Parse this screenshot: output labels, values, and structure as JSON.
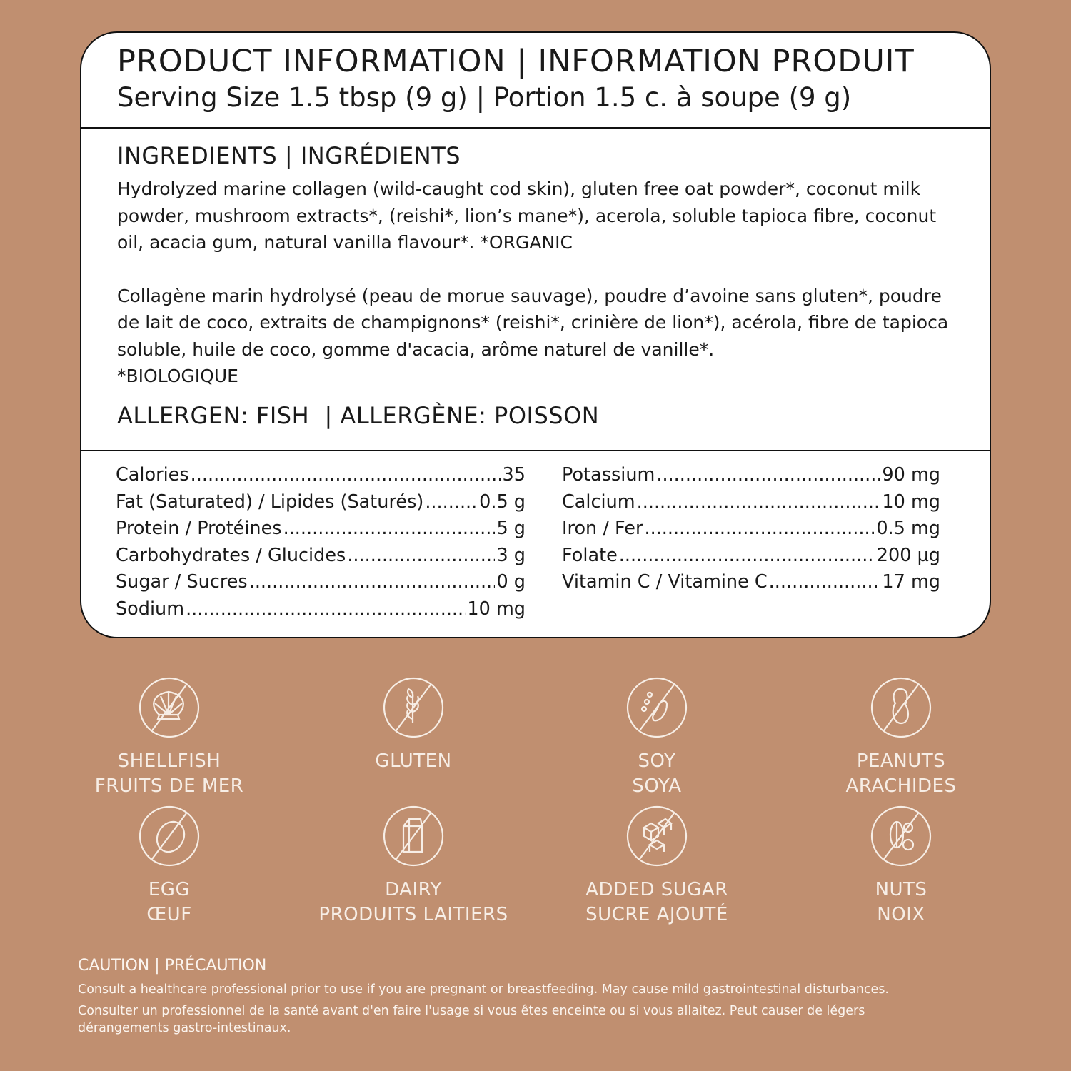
{
  "colors": {
    "background": "#c08f70",
    "card": "#ffffff",
    "icon": "#f7eee6"
  },
  "header": {
    "title": "PRODUCT INFORMATION | INFORMATION PRODUIT",
    "serving": "Serving Size 1.5 tbsp (9 g) | Portion 1.5 c. à soupe (9 g)"
  },
  "ingredients": {
    "heading": "INGREDIENTS | INGRÉDIENTS",
    "en": "Hydrolyzed marine collagen (wild-caught cod skin), gluten free oat powder*, coconut milk powder, mushroom extracts*, (reishi*, lion’s mane*), acerola, soluble tapioca fibre, coconut oil, acacia gum, natural vanilla flavour*. *ORGANIC",
    "fr": "Collagène marin hydrolysé (peau de morue sauvage), poudre d’avoine sans gluten*, poudre de lait de coco, extraits de champignons* (reishi*, crinière de lion*), acérola, fibre de tapioca soluble, huile de coco, gomme d'acacia, arôme naturel de vanille*.",
    "fr_note": "*BIOLOGIQUE",
    "allergen": "ALLERGEN: FISH  | ALLERGÈNE: POISSON"
  },
  "nutrition": {
    "left": [
      {
        "label": "Calories",
        "value": "35"
      },
      {
        "label": "Fat (Saturated) / Lipides (Saturés)",
        "value": "0.5 g"
      },
      {
        "label": "Protein / Protéines",
        "value": "5 g"
      },
      {
        "label": "Carbohydrates / Glucides",
        "value": "3 g"
      },
      {
        "label": "Sugar / Sucres",
        "value": "0 g"
      },
      {
        "label": "Sodium",
        "value": "10 mg"
      }
    ],
    "right": [
      {
        "label": "Potassium",
        "value": "90 mg"
      },
      {
        "label": "Calcium",
        "value": "10 mg"
      },
      {
        "label": "Iron / Fer",
        "value": "0.5 mg"
      },
      {
        "label": "Folate",
        "value": "200 µg"
      },
      {
        "label": "Vitamin C / Vitamine C",
        "value": "17 mg"
      }
    ]
  },
  "free_from": [
    {
      "icon": "shellfish-icon",
      "en": "SHELLFISH",
      "fr": "FRUITS DE MER"
    },
    {
      "icon": "gluten-icon",
      "en": "GLUTEN",
      "fr": ""
    },
    {
      "icon": "soy-icon",
      "en": "SOY",
      "fr": "SOYA"
    },
    {
      "icon": "peanut-icon",
      "en": "PEANUTS",
      "fr": "ARACHIDES"
    },
    {
      "icon": "egg-icon",
      "en": "EGG",
      "fr": "ŒUF"
    },
    {
      "icon": "dairy-icon",
      "en": "DAIRY",
      "fr": "PRODUITS LAITIERS"
    },
    {
      "icon": "sugar-icon",
      "en": "ADDED SUGAR",
      "fr": "SUCRE AJOUTÉ"
    },
    {
      "icon": "nuts-icon",
      "en": "NUTS",
      "fr": "NOIX"
    }
  ],
  "caution": {
    "title": "CAUTION | PRÉCAUTION",
    "en": "Consult a healthcare professional prior to use if you are pregnant or breastfeeding. May cause mild gastrointestinal disturbances.",
    "fr": "Consulter un professionnel de la santé avant d'en faire l'usage si vous êtes enceinte ou si vous allaitez. Peut causer de légers dérangements gastro-intestinaux."
  }
}
